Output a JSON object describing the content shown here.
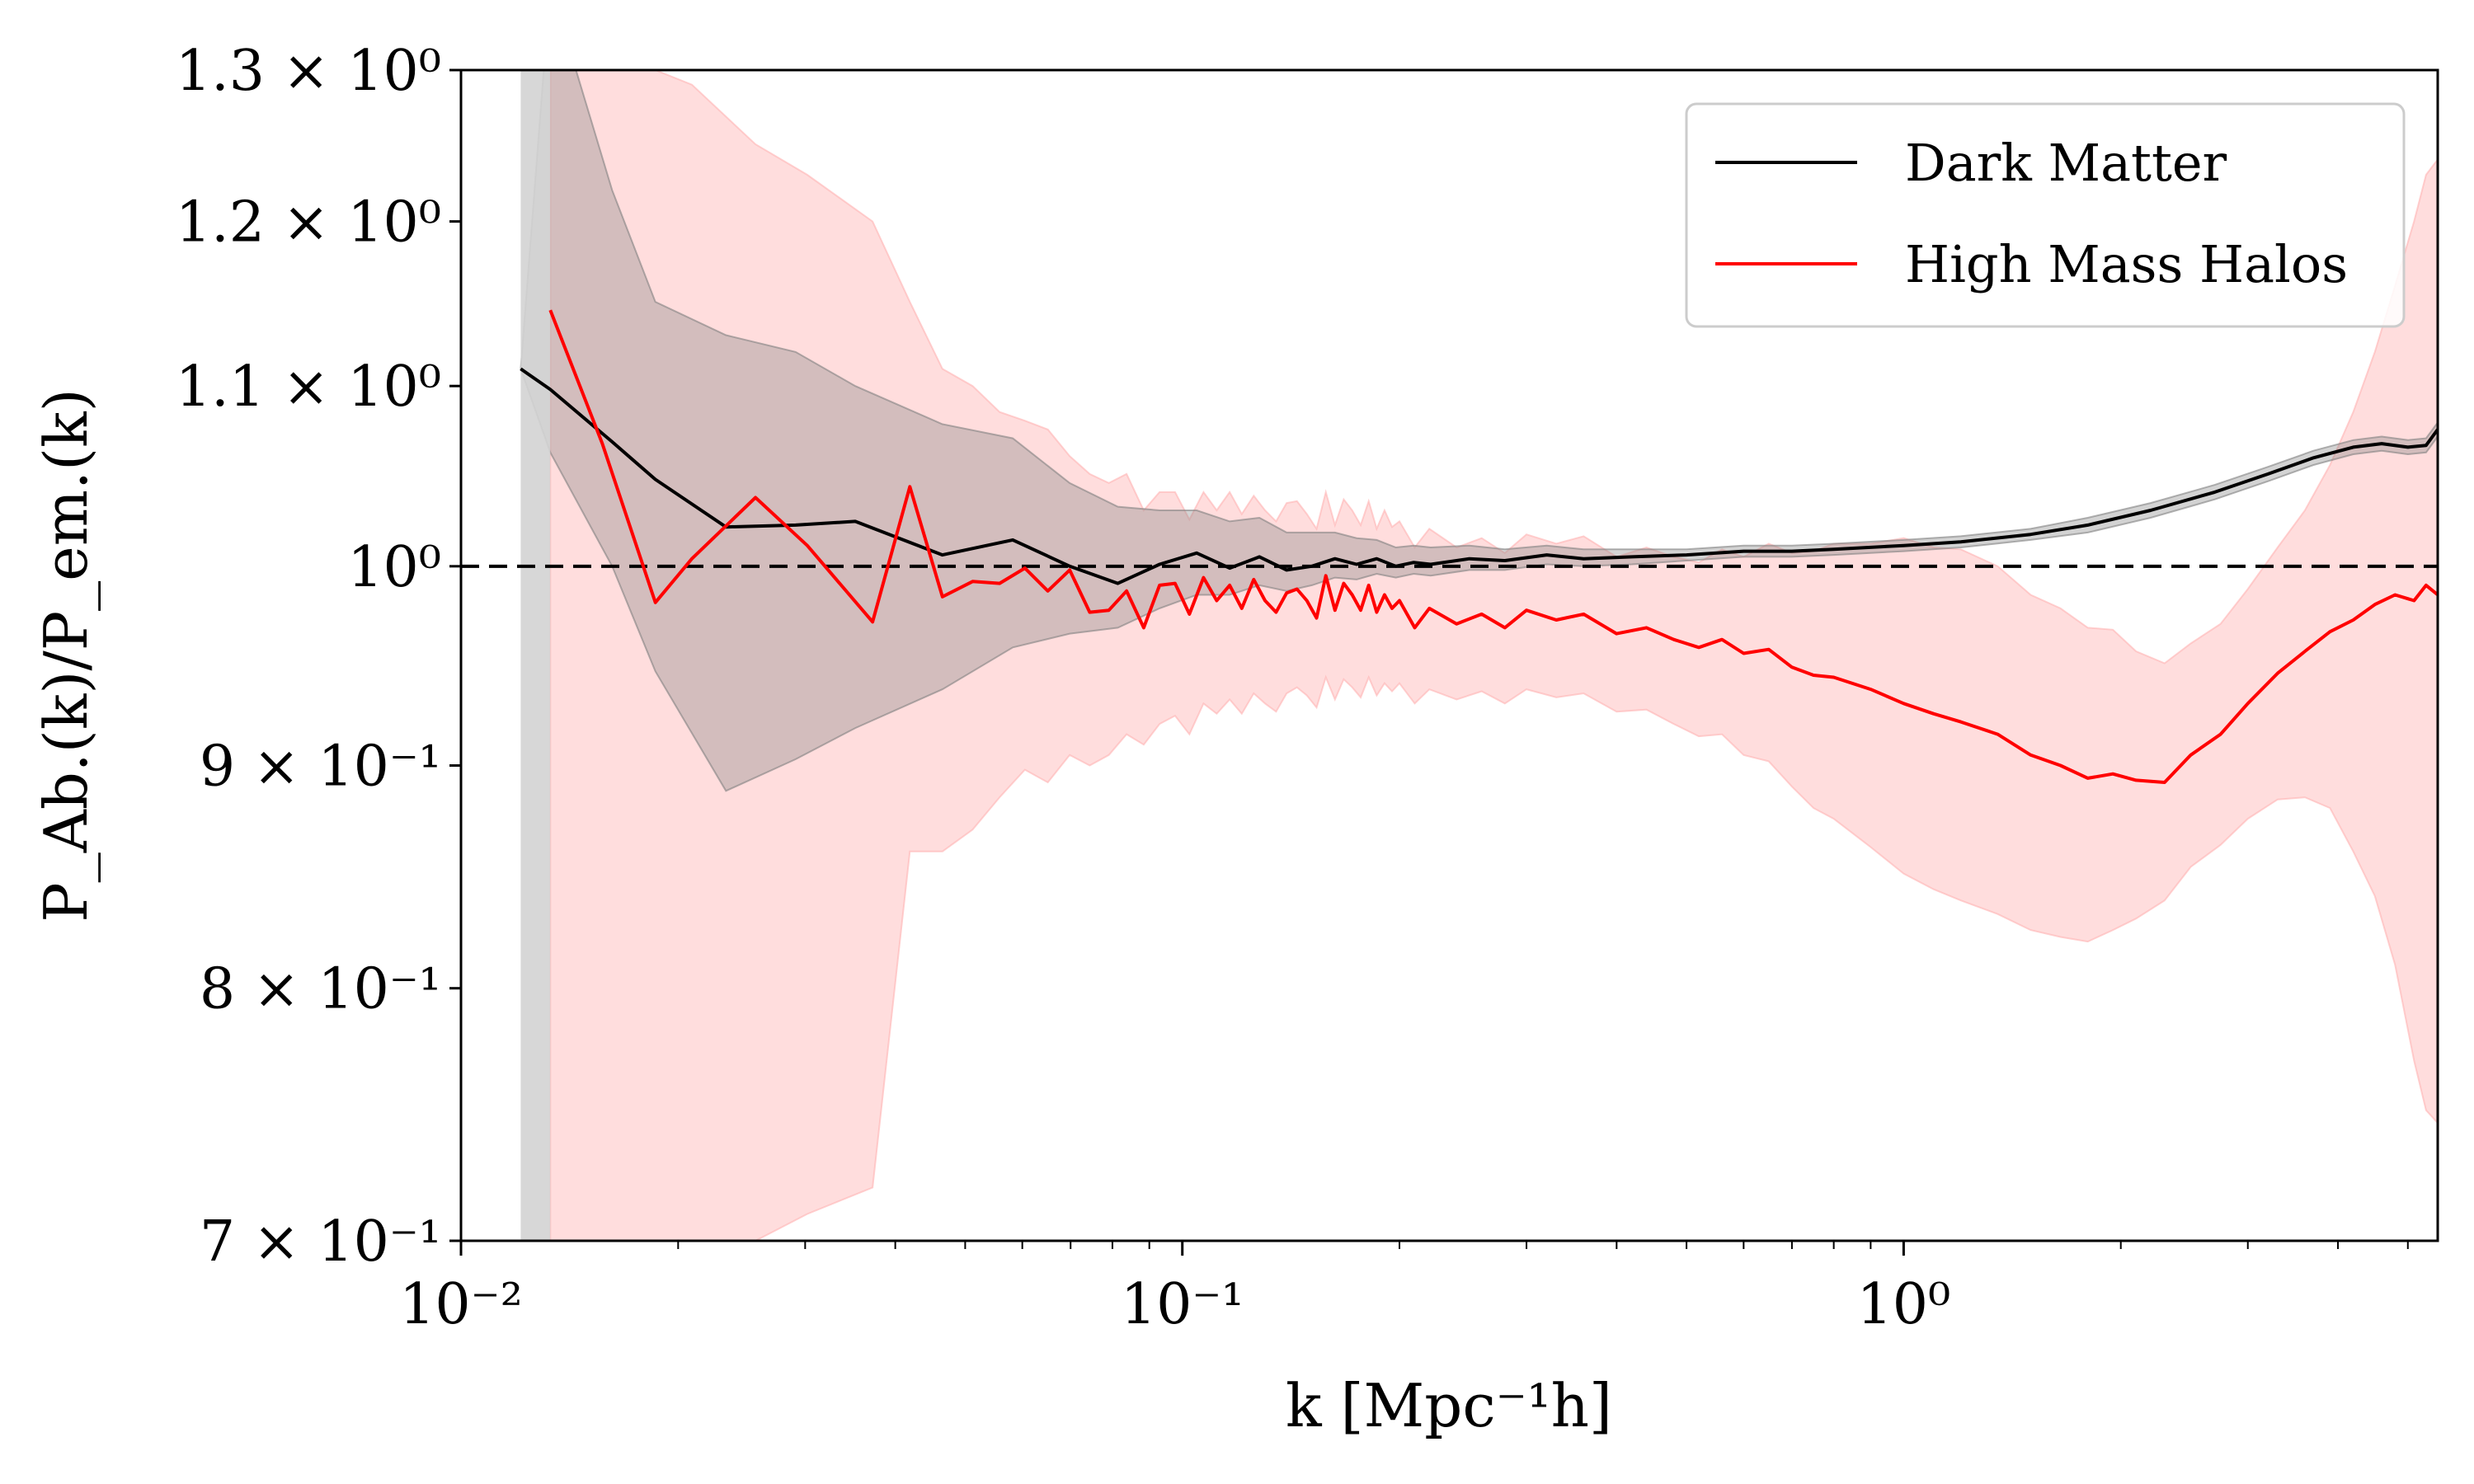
{
  "chart_data": {
    "type": "line",
    "xlabel": "k [Mpc⁻¹h]",
    "ylabel": "P_Ab.(k)/P_em.(k)",
    "xscale": "log",
    "yscale": "log",
    "xlim": [
      0.01,
      5.5
    ],
    "ylim": [
      0.7,
      1.3
    ],
    "grid": false,
    "legend_position": "top-right",
    "x_ticks": [
      {
        "value": 0.01,
        "label": "10⁻²"
      },
      {
        "value": 0.1,
        "label": "10⁻¹"
      },
      {
        "value": 1,
        "label": "10⁰"
      }
    ],
    "y_ticks": [
      {
        "value": 0.7,
        "label": "7 × 10⁻¹"
      },
      {
        "value": 0.8,
        "label": "8 × 10⁻¹"
      },
      {
        "value": 0.9,
        "label": "9 × 10⁻¹"
      },
      {
        "value": 1.0,
        "label": "10⁰"
      },
      {
        "value": 1.1,
        "label": "1.1 × 10⁰"
      },
      {
        "value": 1.2,
        "label": "1.2 × 10⁰"
      },
      {
        "value": 1.3,
        "label": "1.3 × 10⁰"
      }
    ],
    "reference_line": {
      "y": 1.0,
      "style": "dashed",
      "color": "#000000"
    },
    "shaded_vertical_band": {
      "x": [
        0.0121,
        0.0133
      ],
      "color": "#d3d3d3"
    },
    "series": [
      {
        "name": "Dark Matter",
        "color": "#000000",
        "band_color": "#808080",
        "x": [
          0.0121,
          0.0133,
          0.0162,
          0.0186,
          0.0233,
          0.0291,
          0.0352,
          0.0465,
          0.0582,
          0.0698,
          0.0814,
          0.093,
          0.1047,
          0.1163,
          0.1279,
          0.1395,
          0.1512,
          0.1628,
          0.1744,
          0.186,
          0.1977,
          0.2093,
          0.221,
          0.25,
          0.28,
          0.32,
          0.36,
          0.42,
          0.5,
          0.6,
          0.7,
          0.8,
          1.0,
          1.2,
          1.5,
          1.8,
          2.2,
          2.7,
          3.2,
          3.7,
          4.2,
          4.6,
          5.0,
          5.3,
          5.5
        ],
        "y": [
          1.11,
          1.098,
          1.068,
          1.047,
          1.021,
          1.022,
          1.024,
          1.006,
          1.014,
          1.0,
          0.991,
          1.001,
          1.007,
          0.999,
          1.005,
          0.998,
          1.0,
          1.004,
          1.001,
          1.004,
          1.0,
          1.002,
          1.001,
          1.004,
          1.003,
          1.006,
          1.004,
          1.005,
          1.006,
          1.008,
          1.008,
          1.009,
          1.011,
          1.013,
          1.017,
          1.022,
          1.03,
          1.04,
          1.05,
          1.059,
          1.065,
          1.067,
          1.065,
          1.066,
          1.075
        ],
        "band_lower": [
          1.11,
          1.062,
          1.0,
          0.946,
          0.888,
          0.903,
          0.918,
          0.937,
          0.958,
          0.965,
          0.968,
          0.978,
          0.985,
          0.985,
          0.99,
          0.987,
          0.99,
          0.994,
          0.993,
          0.996,
          0.994,
          0.996,
          0.995,
          0.998,
          0.998,
          1.001,
          1.0,
          1.001,
          1.003,
          1.005,
          1.005,
          1.006,
          1.008,
          1.01,
          1.014,
          1.018,
          1.026,
          1.036,
          1.046,
          1.055,
          1.061,
          1.063,
          1.061,
          1.062,
          1.071
        ],
        "band_upper": [
          1.11,
          1.36,
          1.22,
          1.15,
          1.13,
          1.12,
          1.1,
          1.078,
          1.07,
          1.045,
          1.032,
          1.03,
          1.03,
          1.024,
          1.026,
          1.018,
          1.018,
          1.018,
          1.015,
          1.014,
          1.01,
          1.011,
          1.01,
          1.011,
          1.009,
          1.011,
          1.009,
          1.009,
          1.009,
          1.011,
          1.011,
          1.012,
          1.014,
          1.016,
          1.02,
          1.026,
          1.034,
          1.044,
          1.054,
          1.063,
          1.069,
          1.071,
          1.069,
          1.07,
          1.079
        ]
      },
      {
        "name": "High Mass Halos",
        "color": "#ff0000",
        "band_color": "#ffb3b3",
        "x": [
          0.0133,
          0.0157,
          0.0186,
          0.0209,
          0.0256,
          0.0302,
          0.0372,
          0.0419,
          0.0465,
          0.0512,
          0.0558,
          0.0605,
          0.0651,
          0.0698,
          0.0744,
          0.0791,
          0.0837,
          0.0884,
          0.093,
          0.0977,
          0.1023,
          0.107,
          0.1116,
          0.1163,
          0.1209,
          0.1256,
          0.1302,
          0.1349,
          0.1395,
          0.1442,
          0.1488,
          0.1535,
          0.1581,
          0.1628,
          0.1674,
          0.172,
          0.1767,
          0.1813,
          0.186,
          0.1907,
          0.1953,
          0.2,
          0.21,
          0.22,
          0.24,
          0.26,
          0.28,
          0.3,
          0.33,
          0.36,
          0.4,
          0.44,
          0.48,
          0.52,
          0.56,
          0.6,
          0.65,
          0.7,
          0.75,
          0.8,
          0.9,
          1.0,
          1.1,
          1.2,
          1.35,
          1.5,
          1.65,
          1.8,
          1.95,
          2.1,
          2.3,
          2.5,
          2.75,
          3.0,
          3.3,
          3.6,
          3.9,
          4.2,
          4.5,
          4.8,
          5.1,
          5.3,
          5.5
        ],
        "y": [
          1.145,
          1.067,
          0.981,
          1.004,
          1.037,
          1.011,
          0.971,
          1.043,
          0.984,
          0.992,
          0.991,
          0.999,
          0.987,
          0.998,
          0.976,
          0.977,
          0.987,
          0.968,
          0.99,
          0.991,
          0.975,
          0.994,
          0.982,
          0.99,
          0.978,
          0.993,
          0.982,
          0.976,
          0.986,
          0.988,
          0.982,
          0.973,
          0.995,
          0.977,
          0.991,
          0.985,
          0.977,
          0.99,
          0.976,
          0.985,
          0.978,
          0.982,
          0.968,
          0.978,
          0.97,
          0.975,
          0.968,
          0.977,
          0.972,
          0.975,
          0.965,
          0.968,
          0.962,
          0.958,
          0.962,
          0.955,
          0.957,
          0.948,
          0.944,
          0.943,
          0.937,
          0.93,
          0.925,
          0.921,
          0.915,
          0.905,
          0.9,
          0.894,
          0.896,
          0.893,
          0.892,
          0.905,
          0.915,
          0.93,
          0.945,
          0.956,
          0.966,
          0.972,
          0.98,
          0.985,
          0.982,
          0.99,
          0.985
        ],
        "band_lower": [
          0.7,
          0.7,
          0.7,
          0.7,
          0.7,
          0.71,
          0.72,
          0.86,
          0.86,
          0.87,
          0.885,
          0.898,
          0.892,
          0.905,
          0.9,
          0.905,
          0.915,
          0.91,
          0.92,
          0.924,
          0.915,
          0.93,
          0.925,
          0.932,
          0.925,
          0.935,
          0.93,
          0.926,
          0.935,
          0.938,
          0.934,
          0.928,
          0.943,
          0.932,
          0.942,
          0.938,
          0.933,
          0.943,
          0.934,
          0.94,
          0.936,
          0.94,
          0.93,
          0.937,
          0.932,
          0.936,
          0.93,
          0.937,
          0.933,
          0.935,
          0.926,
          0.927,
          0.92,
          0.914,
          0.915,
          0.905,
          0.902,
          0.89,
          0.88,
          0.875,
          0.862,
          0.85,
          0.843,
          0.838,
          0.832,
          0.825,
          0.822,
          0.82,
          0.825,
          0.83,
          0.838,
          0.853,
          0.863,
          0.875,
          0.884,
          0.885,
          0.88,
          0.86,
          0.84,
          0.81,
          0.77,
          0.75,
          0.745
        ],
        "band_upper": [
          1.3,
          1.3,
          1.3,
          1.29,
          1.25,
          1.23,
          1.2,
          1.15,
          1.11,
          1.1,
          1.085,
          1.08,
          1.075,
          1.06,
          1.05,
          1.045,
          1.05,
          1.03,
          1.04,
          1.04,
          1.025,
          1.04,
          1.03,
          1.04,
          1.028,
          1.038,
          1.03,
          1.024,
          1.034,
          1.035,
          1.028,
          1.02,
          1.04,
          1.022,
          1.036,
          1.03,
          1.022,
          1.035,
          1.02,
          1.03,
          1.021,
          1.024,
          1.01,
          1.02,
          1.01,
          1.015,
          1.007,
          1.017,
          1.012,
          1.016,
          1.005,
          1.01,
          1.005,
          1.002,
          1.009,
          1.005,
          1.012,
          1.007,
          1.008,
          1.012,
          1.012,
          1.015,
          1.01,
          1.009,
          1.0,
          0.985,
          0.978,
          0.968,
          0.967,
          0.956,
          0.95,
          0.96,
          0.97,
          0.988,
          1.01,
          1.03,
          1.055,
          1.085,
          1.12,
          1.16,
          1.2,
          1.23,
          1.24
        ]
      }
    ]
  }
}
